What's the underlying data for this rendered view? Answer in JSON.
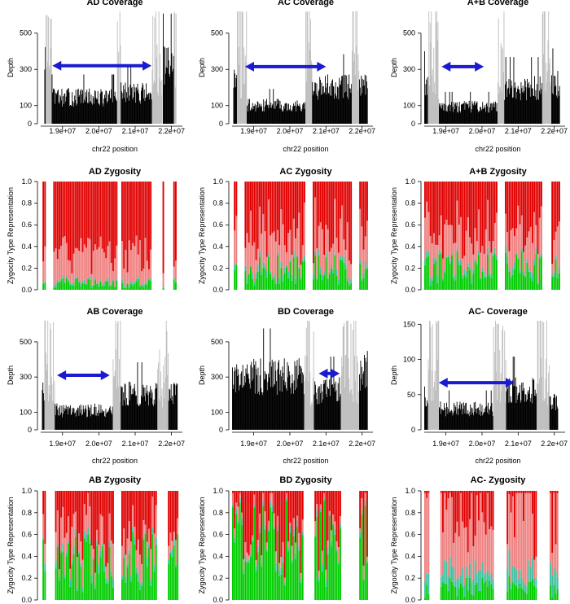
{
  "figure": {
    "series_colors": {
      "covered": "#000000",
      "excluded": "#bebebe",
      "arrow": "#1a1ad0",
      "hom_alt": "#e00000",
      "het": "#ee8080",
      "hom_ref": "#00cc00",
      "minor": "#40c0a0"
    },
    "shared_xaxis": {
      "label": "chr22 position",
      "ticks": [
        19000000.0,
        20000000.0,
        21000000.0,
        22000000.0
      ],
      "tick_labels": [
        "1.9e+07",
        "2.0e+07",
        "2.1e+07",
        "2.2e+07"
      ],
      "xlim": [
        18400000.0,
        22300000.0
      ]
    }
  },
  "chart_data": [
    {
      "type": "bar",
      "id": "ad-cov",
      "title": "AD Coverage",
      "ylabel": "Depth",
      "xlabel": "chr22 position",
      "ylim": [
        0,
        620
      ],
      "yticks": [
        0,
        100,
        300,
        500
      ],
      "xticks": [
        "1.9e+07",
        "2.0e+07",
        "2.1e+07",
        "2.2e+07"
      ],
      "excluded_regions": [
        [
          18520000.0,
          18700000.0
        ],
        [
          20490000.0,
          20590000.0
        ],
        [
          21450000.0,
          21740000.0
        ],
        [
          22050000.0,
          22120000.0
        ]
      ],
      "covered_regions": [
        {
          "range": [
            18500000.0,
            18520000.0
          ],
          "depth": 430
        },
        {
          "range": [
            18700000.0,
            20490000.0
          ],
          "depth": 170
        },
        {
          "range": [
            20590000.0,
            21450000.0
          ],
          "depth": 200
        },
        {
          "range": [
            21750000.0,
            22050000.0
          ],
          "depth": 380
        }
      ],
      "arrow": {
        "from": 18720000.0,
        "to": 21450000.0,
        "y": 320
      }
    },
    {
      "type": "bar",
      "id": "ac-cov",
      "title": "AC Coverage",
      "ylabel": "Depth",
      "xlabel": "chr22 position",
      "ylim": [
        0,
        620
      ],
      "yticks": [
        0,
        100,
        300,
        500
      ],
      "xticks": [
        "1.9e+07",
        "2.0e+07",
        "2.1e+07",
        "2.2e+07"
      ],
      "excluded_regions": [
        [
          18520000.0,
          18800000.0
        ],
        [
          20420000.0,
          20600000.0
        ],
        [
          21700000.0,
          21900000.0
        ]
      ],
      "covered_regions": [
        {
          "range": [
            18420000.0,
            18520000.0
          ],
          "depth": 270
        },
        {
          "range": [
            18800000.0,
            20420000.0
          ],
          "depth": 120
        },
        {
          "range": [
            20600000.0,
            21700000.0
          ],
          "depth": 240
        },
        {
          "range": [
            21900000.0,
            22150000.0
          ],
          "depth": 260
        }
      ],
      "arrow": {
        "from": 18760000.0,
        "to": 21000000.0,
        "y": 315
      }
    },
    {
      "type": "bar",
      "id": "ab-cov-top",
      "title": "A+B Coverage",
      "ylabel": "Depth",
      "xlabel": "chr22 position",
      "ylim": [
        0,
        620
      ],
      "yticks": [
        0,
        100,
        300,
        500
      ],
      "xticks": [
        "1.9e+07",
        "2.0e+07",
        "2.1e+07",
        "2.2e+07"
      ],
      "excluded_regions": [
        [
          18500000.0,
          18800000.0
        ],
        [
          20420000.0,
          20600000.0
        ],
        [
          21650000.0,
          21900000.0
        ]
      ],
      "covered_regions": [
        {
          "range": [
            18400000.0,
            18500000.0
          ],
          "depth": 250
        },
        {
          "range": [
            18800000.0,
            20420000.0
          ],
          "depth": 110
        },
        {
          "range": [
            20600000.0,
            21650000.0
          ],
          "depth": 230
        },
        {
          "range": [
            21900000.0,
            22150000.0
          ],
          "depth": 260
        }
      ],
      "arrow": {
        "from": 18880000.0,
        "to": 20050000.0,
        "y": 315
      }
    },
    {
      "type": "bar",
      "id": "ad-zyg",
      "title": "AD Zygosity",
      "ylabel": "Zygocity Type Representation",
      "ylim": [
        0,
        1.0
      ],
      "yticks": [
        0.0,
        0.2,
        0.4,
        0.6,
        0.8,
        1.0
      ],
      "stacked_series": [
        "hom_ref",
        "minor",
        "het",
        "hom_alt"
      ],
      "bar_regions": [
        [
          18420000.0,
          18520000.0
        ],
        [
          18700000.0,
          20490000.0
        ],
        [
          20590000.0,
          21450000.0
        ],
        [
          21750000.0,
          21800000.0
        ],
        [
          22000000.0,
          22120000.0
        ]
      ],
      "mean_composition": {
        "hom_ref": 0.06,
        "minor": 0.02,
        "het": 0.25,
        "hom_alt": 0.67
      }
    },
    {
      "type": "bar",
      "id": "ac-zyg",
      "title": "AC Zygosity",
      "ylabel": "Zygocity Type Representation",
      "ylim": [
        0,
        1.0
      ],
      "yticks": [
        0.0,
        0.2,
        0.4,
        0.6,
        0.8,
        1.0
      ],
      "stacked_series": [
        "hom_ref",
        "minor",
        "het",
        "hom_alt"
      ],
      "bar_regions": [
        [
          18420000.0,
          18520000.0
        ],
        [
          18700000.0,
          20420000.0
        ],
        [
          20600000.0,
          21700000.0
        ],
        [
          21900000.0,
          22150000.0
        ]
      ],
      "mean_composition": {
        "hom_ref": 0.18,
        "minor": 0.04,
        "het": 0.3,
        "hom_alt": 0.48
      }
    },
    {
      "type": "bar",
      "id": "ab-zyg-top",
      "title": "A+B Zygosity",
      "ylabel": "Zygocity Type Representation",
      "ylim": [
        0,
        1.0
      ],
      "yticks": [
        0.0,
        0.2,
        0.4,
        0.6,
        0.8,
        1.0
      ],
      "stacked_series": [
        "hom_ref",
        "minor",
        "het",
        "hom_alt"
      ],
      "bar_regions": [
        [
          18400000.0,
          18850000.0
        ],
        [
          18850000.0,
          20420000.0
        ],
        [
          20600000.0,
          21650000.0
        ],
        [
          21900000.0,
          22150000.0
        ]
      ],
      "mean_composition": {
        "hom_ref": 0.2,
        "minor": 0.04,
        "het": 0.28,
        "hom_alt": 0.48
      }
    },
    {
      "type": "bar",
      "id": "ab-cov",
      "title": "AB Coverage",
      "ylabel": "Depth",
      "xlabel": "chr22 position",
      "ylim": [
        0,
        620
      ],
      "yticks": [
        0,
        100,
        300,
        500
      ],
      "xticks": [
        "1.9e+07",
        "2.0e+07",
        "2.1e+07",
        "2.2e+07"
      ],
      "excluded_regions": [
        [
          18500000.0,
          18780000.0
        ],
        [
          20380000.0,
          20600000.0
        ],
        [
          21600000.0,
          21900000.0
        ]
      ],
      "covered_regions": [
        {
          "range": [
            18420000.0,
            18500000.0
          ],
          "depth": 240
        },
        {
          "range": [
            18780000.0,
            20380000.0
          ],
          "depth": 130
        },
        {
          "range": [
            20600000.0,
            21600000.0
          ],
          "depth": 240
        },
        {
          "range": [
            21900000.0,
            22150000.0
          ],
          "depth": 240
        }
      ],
      "arrow": {
        "from": 18850000.0,
        "to": 20300000.0,
        "y": 310
      }
    },
    {
      "type": "bar",
      "id": "bd-cov",
      "title": "BD Coverage",
      "ylabel": "Depth",
      "xlabel": "chr22 position",
      "ylim": [
        0,
        620
      ],
      "yticks": [
        0,
        100,
        300,
        500
      ],
      "xticks": [
        "1.9e+07",
        "2.0e+07",
        "2.1e+07",
        "2.2e+07"
      ],
      "excluded_regions": [
        [
          20380000.0,
          20650000.0
        ],
        [
          21400000.0,
          21900000.0
        ]
      ],
      "covered_regions": [
        {
          "range": [
            18400000.0,
            20380000.0
          ],
          "depth": 360
        },
        {
          "range": [
            20650000.0,
            21400000.0
          ],
          "depth": 260
        },
        {
          "range": [
            21900000.0,
            22150000.0
          ],
          "depth": 390
        }
      ],
      "arrow": {
        "from": 20800000.0,
        "to": 21380000.0,
        "y": 320
      }
    },
    {
      "type": "bar",
      "id": "acm-cov",
      "title": "AC- Coverage",
      "ylabel": "Depth",
      "xlabel": "chr22 position",
      "ylim": [
        0,
        155
      ],
      "yticks": [
        0,
        50,
        100,
        150
      ],
      "xticks": [
        "1.9e+07",
        "2.0e+07",
        "2.1e+07",
        "2.2e+07"
      ],
      "excluded_regions": [
        [
          18500000.0,
          18800000.0
        ],
        [
          20300000.0,
          20650000.0
        ],
        [
          21500000.0,
          21850000.0
        ]
      ],
      "covered_regions": [
        {
          "range": [
            18400000.0,
            18500000.0
          ],
          "depth": 60
        },
        {
          "range": [
            18800000.0,
            20300000.0
          ],
          "depth": 35
        },
        {
          "range": [
            20650000.0,
            21500000.0
          ],
          "depth": 65
        },
        {
          "range": [
            21850000.0,
            22100000.0
          ],
          "depth": 45
        }
      ],
      "arrow": {
        "from": 18800000.0,
        "to": 20900000.0,
        "y": 67
      }
    },
    {
      "type": "bar",
      "id": "ab-zyg",
      "title": "AB Zygosity",
      "ylabel": "Zygocity Type Representation",
      "ylim": [
        0,
        1.0
      ],
      "yticks": [
        0.0,
        0.2,
        0.4,
        0.6,
        0.8,
        1.0
      ],
      "stacked_series": [
        "hom_ref",
        "minor",
        "het",
        "hom_alt"
      ],
      "bar_regions": [
        [
          18420000.0,
          18500000.0
        ],
        [
          18780000.0,
          20380000.0
        ],
        [
          20600000.0,
          21600000.0
        ],
        [
          21900000.0,
          22150000.0
        ]
      ],
      "mean_composition": {
        "hom_ref": 0.35,
        "minor": 0.05,
        "het": 0.2,
        "hom_alt": 0.4
      }
    },
    {
      "type": "bar",
      "id": "bd-zyg",
      "title": "BD Zygosity",
      "ylabel": "Zygocity Type Representation",
      "ylim": [
        0,
        1.0
      ],
      "yticks": [
        0.0,
        0.2,
        0.4,
        0.6,
        0.8,
        1.0
      ],
      "stacked_series": [
        "hom_ref",
        "minor",
        "het",
        "hom_alt"
      ],
      "bar_regions": [
        [
          18400000.0,
          20380000.0
        ],
        [
          20650000.0,
          21400000.0
        ],
        [
          21900000.0,
          22150000.0
        ]
      ],
      "mean_composition": {
        "hom_ref": 0.55,
        "minor": 0.04,
        "het": 0.08,
        "hom_alt": 0.33
      }
    },
    {
      "type": "bar",
      "id": "acm-zyg",
      "title": "AC- Zygosity",
      "ylabel": "Zygocity Type Representation",
      "ylim": [
        0,
        1.0
      ],
      "yticks": [
        0.0,
        0.2,
        0.4,
        0.6,
        0.8,
        1.0
      ],
      "stacked_series": [
        "hom_ref",
        "minor",
        "het",
        "hom_alt"
      ],
      "bar_regions": [
        [
          18400000.0,
          18500000.0
        ],
        [
          18800000.0,
          20300000.0
        ],
        [
          20650000.0,
          21500000.0
        ],
        [
          21850000.0,
          22100000.0
        ]
      ],
      "mean_composition": {
        "hom_ref": 0.12,
        "minor": 0.15,
        "het": 0.55,
        "hom_alt": 0.18
      }
    }
  ]
}
